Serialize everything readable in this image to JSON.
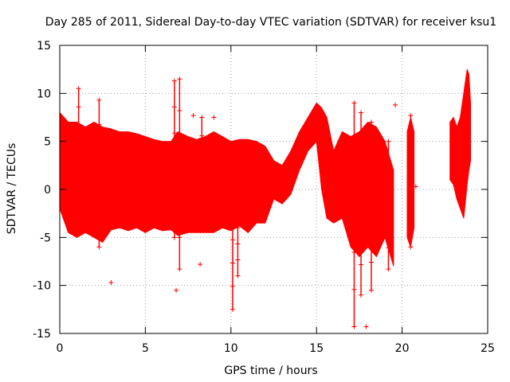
{
  "chart_data": {
    "type": "scatter",
    "title": "Day 285 of 2011, Sidereal Day-to-day VTEC variation (SDTVAR) for receiver ksu1",
    "xlabel": "GPS time / hours",
    "ylabel": "SDTVAR / TECUs",
    "xlim": [
      0,
      25
    ],
    "ylim": [
      -15,
      15
    ],
    "x_ticks": [
      0,
      5,
      10,
      15,
      20,
      25
    ],
    "y_ticks": [
      -15,
      -10,
      -5,
      0,
      5,
      10,
      15
    ],
    "grid": true,
    "marker": "+",
    "series": [
      {
        "name": "SDTVAR",
        "color": "#ff0000",
        "envelope_x": [
          0.0,
          0.5,
          1.0,
          1.5,
          2.0,
          2.5,
          3.0,
          3.5,
          4.0,
          4.5,
          5.0,
          5.5,
          6.0,
          6.5,
          6.9,
          7.5,
          8.0,
          8.5,
          9.0,
          9.5,
          10.0,
          10.5,
          11.0,
          11.5,
          12.0,
          12.5,
          13.0,
          13.5,
          14.0,
          14.5,
          15.0,
          15.3,
          15.6,
          16.0,
          16.5,
          17.0,
          17.5,
          18.0,
          18.5,
          19.0,
          19.5
        ],
        "envelope_upper": [
          8.0,
          7.0,
          7.0,
          6.5,
          7.0,
          6.5,
          6.3,
          6.0,
          6.0,
          5.8,
          5.5,
          5.2,
          5.0,
          5.0,
          6.0,
          5.5,
          5.2,
          5.5,
          6.0,
          5.5,
          5.0,
          5.2,
          5.2,
          5.0,
          4.5,
          3.0,
          2.5,
          4.0,
          6.0,
          7.5,
          9.0,
          8.5,
          7.5,
          4.0,
          6.0,
          5.5,
          6.0,
          7.0,
          6.5,
          5.0,
          2.0
        ],
        "envelope_lower": [
          -2.0,
          -4.5,
          -5.0,
          -4.5,
          -5.0,
          -5.5,
          -4.2,
          -4.0,
          -4.3,
          -4.0,
          -4.5,
          -4.0,
          -4.3,
          -4.2,
          -4.8,
          -4.5,
          -4.5,
          -4.5,
          -4.5,
          -4.0,
          -4.3,
          -3.8,
          -4.5,
          -3.5,
          -3.5,
          -1.0,
          -1.5,
          -0.5,
          2.0,
          4.0,
          5.0,
          0.0,
          -3.0,
          -3.5,
          -3.0,
          -6.0,
          -7.0,
          -6.0,
          -7.0,
          -5.0,
          -8.0
        ],
        "segment2_x": [
          20.3,
          20.5,
          20.7
        ],
        "segment2_upper": [
          6.0,
          7.5,
          6.0
        ],
        "segment2_lower": [
          -5.0,
          -6.0,
          -4.0
        ],
        "segment3_x": [
          22.8,
          23.0,
          23.2,
          23.4,
          23.6,
          23.8,
          23.9,
          24.0
        ],
        "segment3_upper": [
          7.0,
          7.5,
          6.5,
          7.5,
          10.0,
          12.5,
          12.0,
          9.0
        ],
        "segment3_lower": [
          1.0,
          0.5,
          -1.0,
          -2.0,
          -3.0,
          0.5,
          2.0,
          3.0
        ],
        "spikes": [
          {
            "x": 1.1,
            "low": -1.0,
            "high": 10.5
          },
          {
            "x": 2.3,
            "low": -6.0,
            "high": 9.3
          },
          {
            "x": 6.7,
            "low": -5.0,
            "high": 11.3
          },
          {
            "x": 7.0,
            "low": -8.3,
            "high": 11.5
          },
          {
            "x": 8.3,
            "low": -4.0,
            "high": 7.5
          },
          {
            "x": 10.1,
            "low": -12.5,
            "high": 2.0
          },
          {
            "x": 10.4,
            "low": -9.0,
            "high": 1.0
          },
          {
            "x": 17.2,
            "low": -14.3,
            "high": 9.0
          },
          {
            "x": 17.6,
            "low": -11.0,
            "high": 8.0
          },
          {
            "x": 18.2,
            "low": -10.5,
            "high": 7.0
          },
          {
            "x": 19.2,
            "low": -8.3,
            "high": 5.0
          },
          {
            "x": 20.5,
            "low": -6.0,
            "high": 7.7
          }
        ],
        "outliers": [
          {
            "x": 3.0,
            "y": -9.7
          },
          {
            "x": 6.8,
            "y": -10.5
          },
          {
            "x": 7.8,
            "y": 7.7
          },
          {
            "x": 8.2,
            "y": -7.8
          },
          {
            "x": 9.0,
            "y": 7.5
          },
          {
            "x": 17.9,
            "y": -14.3
          },
          {
            "x": 19.6,
            "y": 8.8
          },
          {
            "x": 20.8,
            "y": 0.3
          }
        ]
      }
    ]
  }
}
